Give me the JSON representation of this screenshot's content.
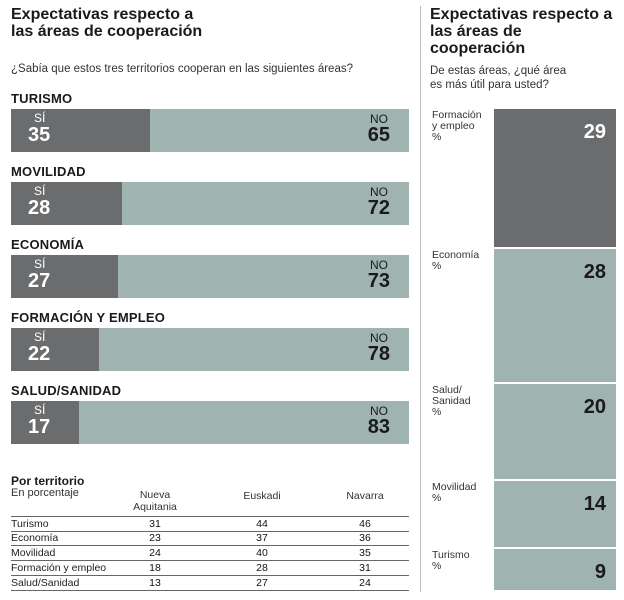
{
  "left": {
    "title": [
      "Expectativas respecto a",
      "las áreas de cooperación"
    ],
    "question": "¿Sabía que estos tres territorios cooperan en las siguientes áreas?"
  },
  "right": {
    "title": [
      "Expectativas respecto a",
      "las áreas de cooperación"
    ],
    "question": [
      "De estas áreas, ¿qué área",
      "es más útil para usted?"
    ]
  },
  "chart_data": [
    {
      "type": "bar",
      "stacked": true,
      "orientation": "horizontal",
      "title": "¿Sabía que estos tres territorios cooperan en las siguientes áreas?",
      "categories": [
        "TURISMO",
        "MOVILIDAD",
        "ECONOMÍA",
        "FORMACIÓN Y EMPLEO",
        "SALUD/SANIDAD"
      ],
      "series": [
        {
          "name": "SÍ",
          "values": [
            35,
            28,
            27,
            22,
            17
          ]
        },
        {
          "name": "NO",
          "values": [
            65,
            72,
            73,
            78,
            83
          ]
        }
      ],
      "colors": {
        "si": "#6b6c6e",
        "no": "#9fb3b1"
      },
      "xlim": [
        0,
        100
      ]
    },
    {
      "type": "table",
      "title": "Por territorio",
      "subtitle": "En porcentaje",
      "columns": [
        [
          "Nueva",
          "Aquitania"
        ],
        [
          "Euskadi"
        ],
        [
          "Navarra"
        ]
      ],
      "rows": [
        {
          "name": "Turismo",
          "values": [
            31,
            44,
            46
          ]
        },
        {
          "name": "Economía",
          "values": [
            23,
            37,
            36
          ]
        },
        {
          "name": "Movilidad",
          "values": [
            24,
            40,
            35
          ]
        },
        {
          "name": "Formación y empleo",
          "values": [
            18,
            28,
            31
          ]
        },
        {
          "name": "Salud/Sanidad",
          "values": [
            13,
            27,
            24
          ]
        }
      ]
    },
    {
      "type": "bar",
      "stacked": true,
      "orientation": "vertical",
      "title": "De estas áreas, ¿qué área es más útil para usted?",
      "categories": [
        [
          "Formación",
          "y empleo",
          "%"
        ],
        [
          "Economía",
          "%"
        ],
        [
          "Salud/",
          "Sanidad",
          "%"
        ],
        [
          "Movilidad",
          "%"
        ],
        [
          "Turismo",
          "%"
        ]
      ],
      "values": [
        29,
        28,
        20,
        14,
        9
      ],
      "colors": [
        "#6b6c6e",
        "#9fb3b1",
        "#9fb3b1",
        "#9fb3b1",
        "#9fb3b1"
      ],
      "value_colors": [
        "#ffffff",
        "#1a1a1a",
        "#1a1a1a",
        "#1a1a1a",
        "#1a1a1a"
      ]
    }
  ]
}
